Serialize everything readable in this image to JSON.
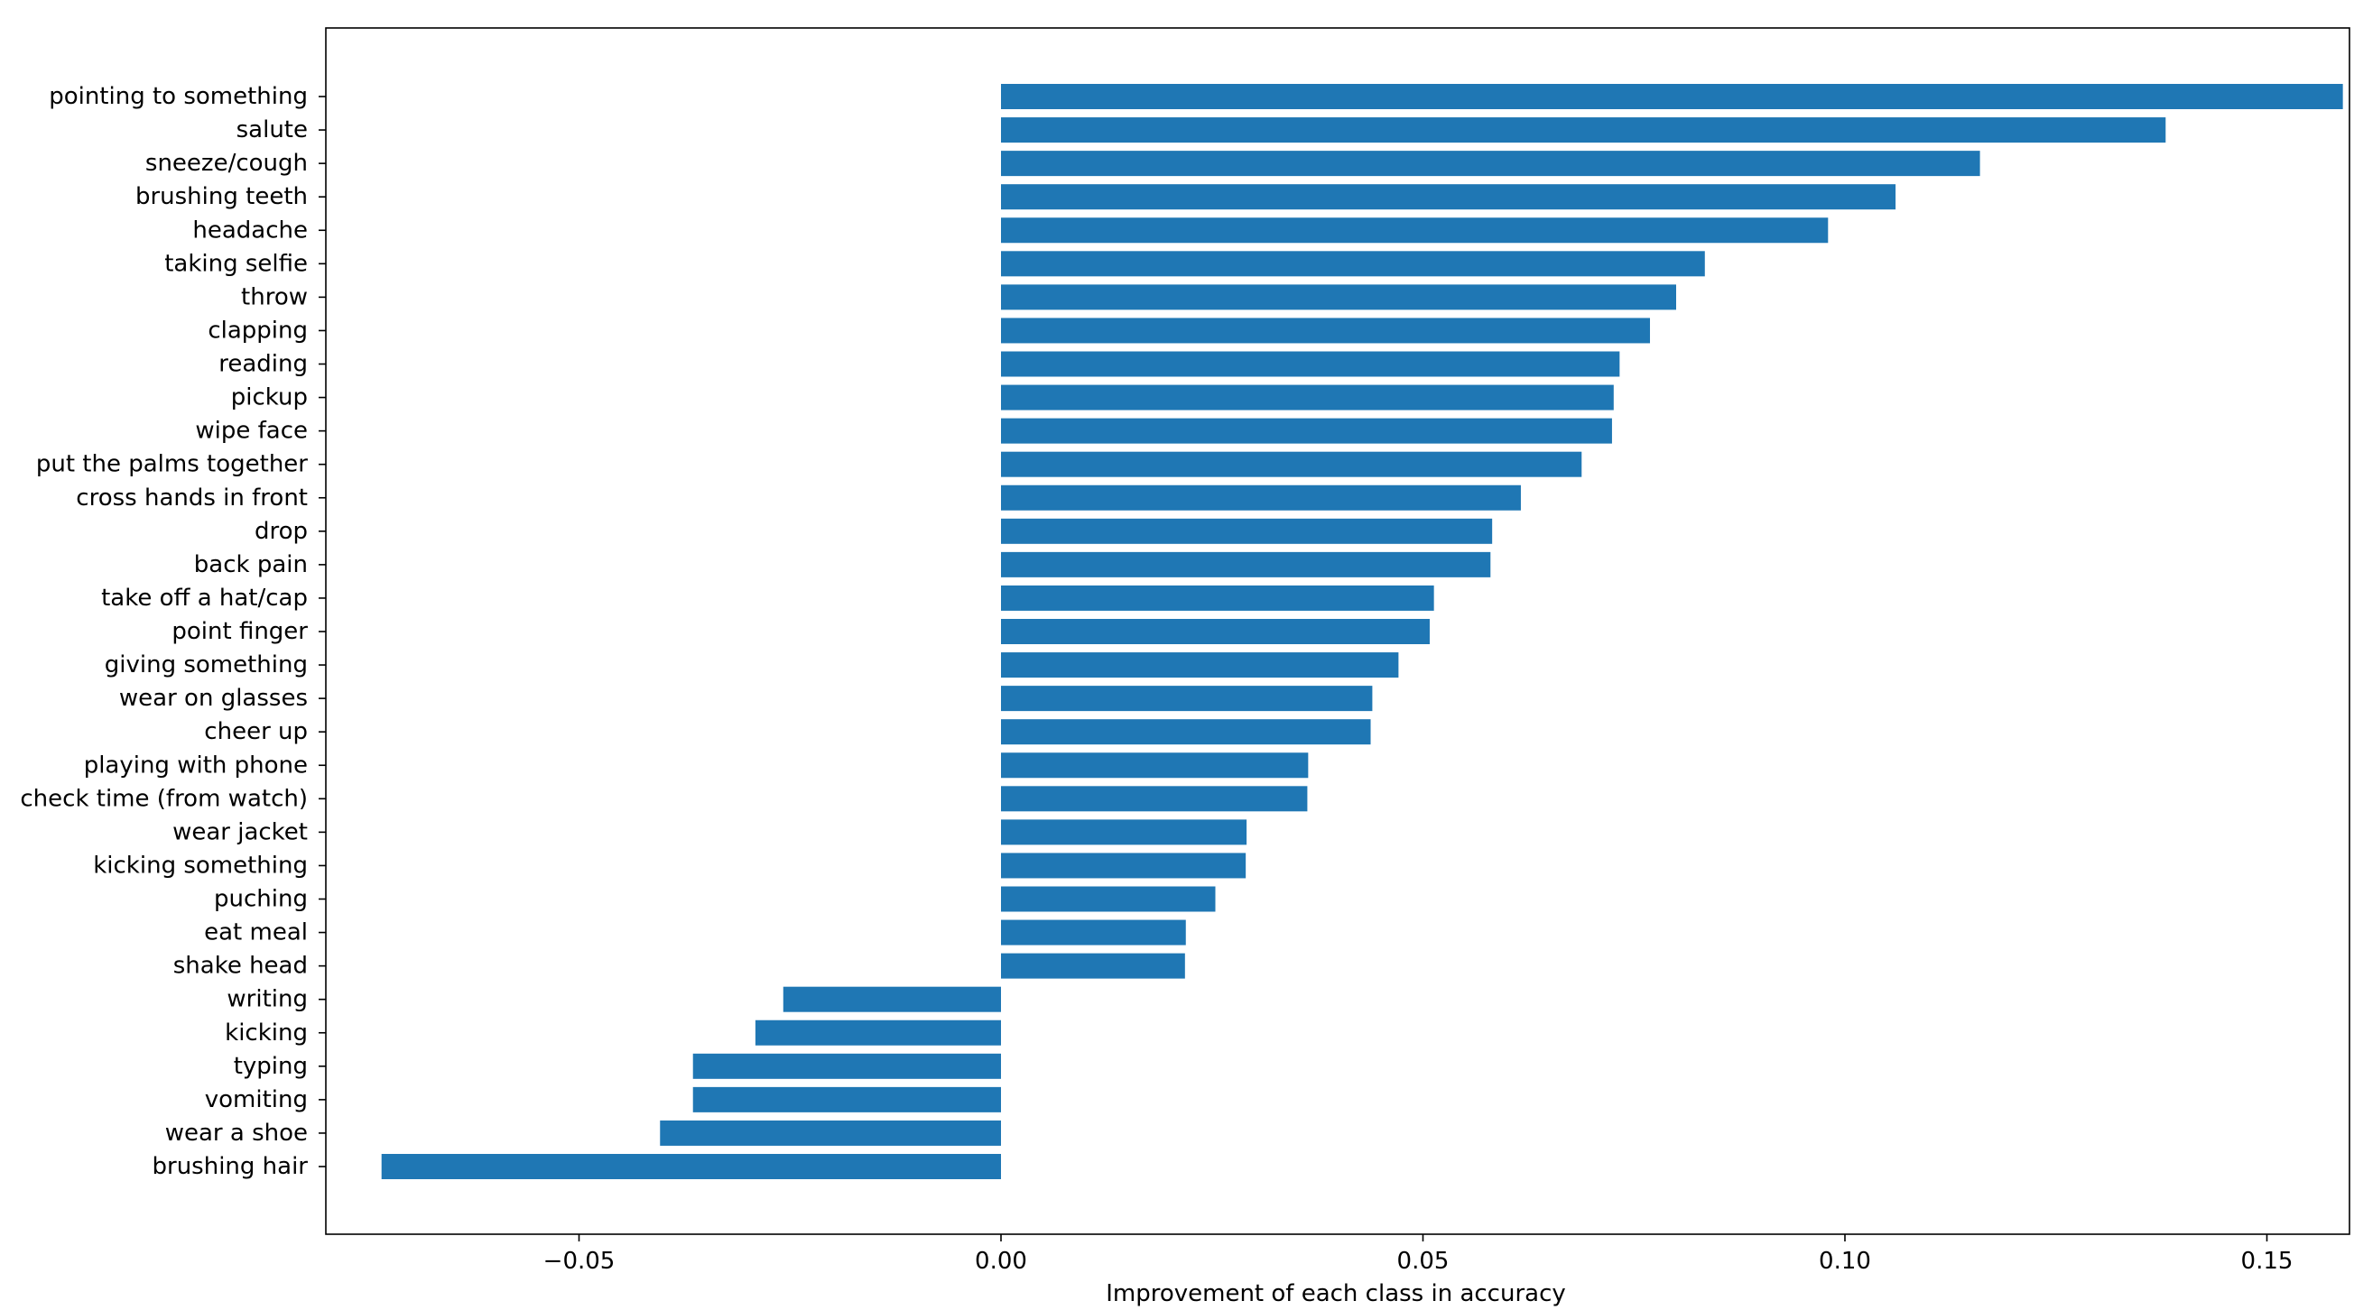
{
  "chart_data": {
    "type": "bar",
    "orientation": "horizontal",
    "title": "",
    "xlabel": "Improvement of each class in accuracy",
    "ylabel": "",
    "xlim": [
      -0.08,
      0.16
    ],
    "grid": false,
    "bar_color": "#1f77b4",
    "xticks": [
      {
        "value": -0.05,
        "label": "−0.05"
      },
      {
        "value": 0.0,
        "label": "0.00"
      },
      {
        "value": 0.05,
        "label": "0.05"
      },
      {
        "value": 0.1,
        "label": "0.10"
      },
      {
        "value": 0.15,
        "label": "0.15"
      }
    ],
    "categories": [
      "pointing to something",
      "salute",
      "sneeze/cough",
      "brushing teeth",
      "headache",
      "taking selfie",
      "throw",
      "clapping",
      "reading",
      "pickup",
      "wipe face",
      "put the palms together",
      "cross hands in front",
      "drop",
      "back pain",
      "take off a hat/cap",
      "point finger",
      "giving something",
      "wear on glasses",
      "cheer up",
      "playing with phone",
      "check time (from watch)",
      "wear jacket",
      "kicking something",
      "puching",
      "eat meal",
      "shake head",
      "writing",
      "kicking",
      "typing",
      "vomiting",
      "wear a shoe",
      "brushing hair"
    ],
    "values": [
      0.159,
      0.138,
      0.116,
      0.106,
      0.098,
      0.0834,
      0.08,
      0.0769,
      0.0733,
      0.0726,
      0.0724,
      0.0688,
      0.0616,
      0.0582,
      0.058,
      0.0513,
      0.0508,
      0.0471,
      0.044,
      0.0438,
      0.0364,
      0.0363,
      0.0291,
      0.029,
      0.0254,
      0.0219,
      0.0218,
      -0.0258,
      -0.0291,
      -0.0365,
      -0.0365,
      -0.0404,
      -0.0734
    ]
  }
}
